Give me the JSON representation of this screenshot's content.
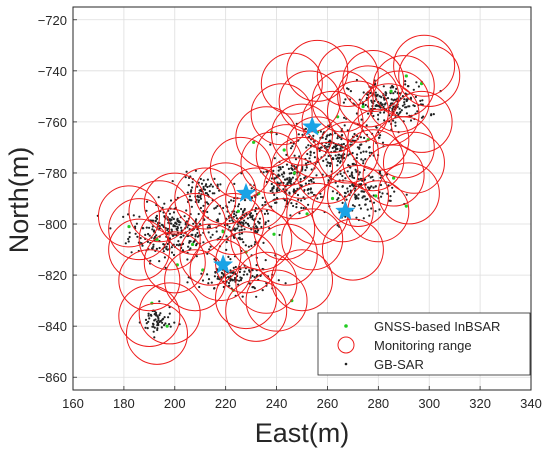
{
  "chart_data": {
    "type": "scatter",
    "xlabel": "East(m)",
    "ylabel": "North(m)",
    "xlim": [
      160,
      340
    ],
    "ylim": [
      -865,
      -715
    ],
    "x_ticks": [
      160,
      180,
      200,
      220,
      240,
      260,
      280,
      300,
      320,
      340
    ],
    "y_ticks": [
      -720,
      -740,
      -760,
      -780,
      -800,
      -820,
      -840,
      -860
    ],
    "x_tick_labels": [
      "160",
      "180",
      "200",
      "220",
      "240",
      "260",
      "280",
      "300",
      "320",
      "340"
    ],
    "y_tick_labels": [
      "−720",
      "−740",
      "−760",
      "−780",
      "−800",
      "−820",
      "−840",
      "−860"
    ],
    "grid": true,
    "legend_position": "bottom-right",
    "legend": [
      {
        "label": "GNSS-based InBSAR",
        "marker": "dot",
        "color": "#22cc22"
      },
      {
        "label": "Monitoring range",
        "marker": "circle",
        "color": "#ee1c1c"
      },
      {
        "label": "GB-SAR",
        "marker": "dot",
        "color": "#222222"
      }
    ],
    "colors": {
      "monitoring_range": "#ee1c1c",
      "gnss": "#22cc22",
      "gbsar_points": "#222222",
      "stations": "#1aa3e6",
      "grid": "#dddddd",
      "axes": "#262626"
    },
    "monitoring_radius_m": 12,
    "series": [
      {
        "name": "Monitoring range",
        "centers": [
          [
            182,
            -797
          ],
          [
            194,
            -795
          ],
          [
            186,
            -810
          ],
          [
            198,
            -806
          ],
          [
            208,
            -800
          ],
          [
            214,
            -812
          ],
          [
            223,
            -800
          ],
          [
            220,
            -788
          ],
          [
            232,
            -790
          ],
          [
            226,
            -778
          ],
          [
            238,
            -776
          ],
          [
            236,
            -766
          ],
          [
            247,
            -786
          ],
          [
            244,
            -773
          ],
          [
            250,
            -765
          ],
          [
            256,
            -770
          ],
          [
            260,
            -780
          ],
          [
            268,
            -772
          ],
          [
            278,
            -775
          ],
          [
            286,
            -781
          ],
          [
            292,
            -788
          ],
          [
            272,
            -789
          ],
          [
            266,
            -795
          ],
          [
            256,
            -796
          ],
          [
            280,
            -795
          ],
          [
            290,
            -770
          ],
          [
            297,
            -760
          ],
          [
            284,
            -757
          ],
          [
            272,
            -756
          ],
          [
            262,
            -760
          ],
          [
            253,
            -752
          ],
          [
            246,
            -745
          ],
          [
            256,
            -740
          ],
          [
            268,
            -742
          ],
          [
            278,
            -744
          ],
          [
            290,
            -746
          ],
          [
            298,
            -738
          ],
          [
            300,
            -742
          ],
          [
            276,
            -750
          ],
          [
            288,
            -752
          ],
          [
            242,
            -757
          ],
          [
            250,
            -778
          ],
          [
            218,
            -818
          ],
          [
            228,
            -815
          ],
          [
            236,
            -823
          ],
          [
            244,
            -812
          ],
          [
            250,
            -822
          ],
          [
            208,
            -822
          ],
          [
            200,
            -815
          ],
          [
            190,
            -822
          ],
          [
            190,
            -836
          ],
          [
            193,
            -843
          ],
          [
            198,
            -835
          ],
          [
            228,
            -829
          ],
          [
            234,
            -806
          ],
          [
            243,
            -802
          ],
          [
            212,
            -790
          ],
          [
            200,
            -792
          ],
          [
            186,
            -802
          ],
          [
            266,
            -752
          ],
          [
            294,
            -776
          ],
          [
            280,
            -767
          ],
          [
            254,
            -806
          ],
          [
            232,
            -834
          ],
          [
            240,
            -830
          ],
          [
            270,
            -810
          ]
        ]
      },
      {
        "name": "GB-SAR stations",
        "points": [
          [
            228,
            -788
          ],
          [
            254,
            -762
          ],
          [
            267,
            -795
          ],
          [
            219,
            -816
          ]
        ]
      },
      {
        "name": "GNSS-based InBSAR",
        "points": [
          [
            182,
            -801
          ],
          [
            193,
            -806
          ],
          [
            207,
            -808
          ],
          [
            219,
            -803
          ],
          [
            225,
            -795
          ],
          [
            233,
            -788
          ],
          [
            247,
            -780
          ],
          [
            243,
            -771
          ],
          [
            256,
            -764
          ],
          [
            264,
            -758
          ],
          [
            274,
            -754
          ],
          [
            285,
            -748
          ],
          [
            291,
            -742
          ],
          [
            297,
            -745
          ],
          [
            276,
            -767
          ],
          [
            286,
            -782
          ],
          [
            291,
            -793
          ],
          [
            279,
            -789
          ],
          [
            262,
            -790
          ],
          [
            252,
            -796
          ],
          [
            239,
            -804
          ],
          [
            228,
            -811
          ],
          [
            211,
            -818
          ],
          [
            201,
            -816
          ],
          [
            191,
            -831
          ],
          [
            197,
            -840
          ],
          [
            223,
            -826
          ],
          [
            246,
            -830
          ],
          [
            231,
            -768
          ],
          [
            238,
            -764
          ]
        ]
      },
      {
        "name": "GB-SAR",
        "clusters": [
          {
            "center": [
              199,
              -803
            ],
            "spread": [
              14,
              9
            ],
            "count": 260
          },
          {
            "center": [
              226,
              -800
            ],
            "spread": [
              10,
              8
            ],
            "count": 160
          },
          {
            "center": [
              245,
              -785
            ],
            "spread": [
              11,
              8
            ],
            "count": 190
          },
          {
            "center": [
              262,
              -770
            ],
            "spread": [
              14,
              8
            ],
            "count": 220
          },
          {
            "center": [
              284,
              -753
            ],
            "spread": [
              13,
              7
            ],
            "count": 200
          },
          {
            "center": [
              273,
              -787
            ],
            "spread": [
              11,
              8
            ],
            "count": 150
          },
          {
            "center": [
              224,
              -821
            ],
            "spread": [
              12,
              5
            ],
            "count": 120
          },
          {
            "center": [
              193,
              -838
            ],
            "spread": [
              5,
              5
            ],
            "count": 60
          },
          {
            "center": [
              210,
              -787
            ],
            "spread": [
              6,
              5
            ],
            "count": 70
          }
        ]
      }
    ]
  }
}
